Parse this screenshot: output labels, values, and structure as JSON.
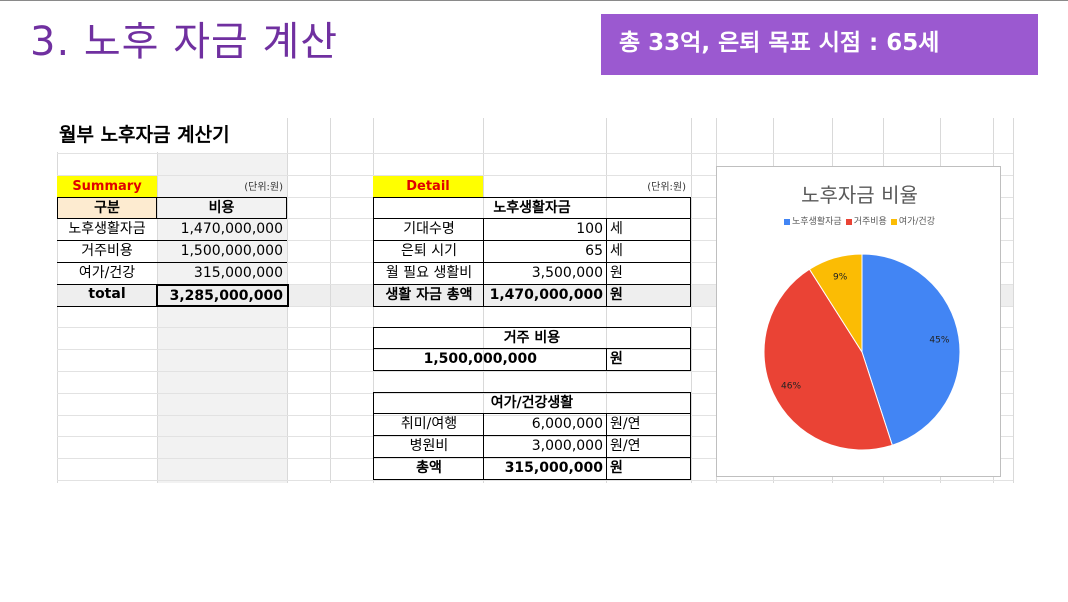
{
  "slide": {
    "title": "3. 노후 자금 계산",
    "banner": "총 33억, 은퇴 목표 시점 : 65세"
  },
  "sheet": {
    "title": "월부 노후자금 계산기",
    "summary": {
      "tag": "Summary",
      "unit": "(단위:원)",
      "header": {
        "col1": "구분",
        "col2": "비용"
      },
      "rows": [
        {
          "label": "노후생활자금",
          "value": "1,470,000,000"
        },
        {
          "label": "거주비용",
          "value": "1,500,000,000"
        },
        {
          "label": "여가/건강",
          "value": "315,000,000"
        }
      ],
      "total": {
        "label": "total",
        "value": "3,285,000,000"
      }
    },
    "detail": {
      "tag": "Detail",
      "unit": "(단위:원)",
      "living": {
        "header": "노후생활자금",
        "rows": [
          {
            "label": "기대수명",
            "value": "100",
            "unit": "세"
          },
          {
            "label": "은퇴 시기",
            "value": "65",
            "unit": "세"
          },
          {
            "label": "월 필요 생활비",
            "value": "3,500,000",
            "unit": "원"
          }
        ],
        "total": {
          "label": "생활 자금 총액",
          "value": "1,470,000,000",
          "unit": "원"
        }
      },
      "housing": {
        "header": "거주 비용",
        "value": "1,500,000,000",
        "unit": "원"
      },
      "leisure": {
        "header": "여가/건강생활",
        "rows": [
          {
            "label": "취미/여행",
            "value": "6,000,000",
            "unit": "원/연"
          },
          {
            "label": "병원비",
            "value": "3,000,000",
            "unit": "원/연"
          }
        ],
        "total": {
          "label": "총액",
          "value": "315,000,000",
          "unit": "원"
        }
      }
    }
  },
  "chart_data": {
    "type": "pie",
    "title": "노후자금 비율",
    "legend_position": "top",
    "categories": [
      "노후생활자금",
      "거주비용",
      "여가/건강"
    ],
    "values": [
      45,
      46,
      9
    ],
    "labels": [
      "45%",
      "46%",
      "9%"
    ],
    "colors": [
      "#4285f4",
      "#ea4335",
      "#fbbc04"
    ]
  }
}
